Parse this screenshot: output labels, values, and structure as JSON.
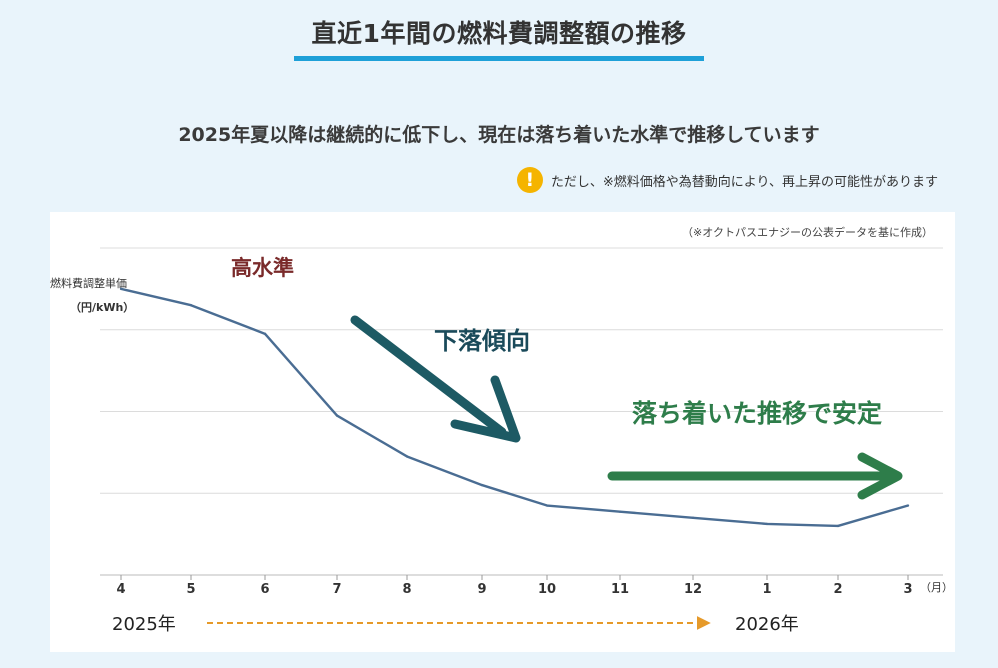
{
  "header": {
    "title": "直近1年間の燃料費調整額の推移"
  },
  "subtitle": "2025年夏以降は継続的に低下し、現在は落ち着いた水準で推移しています",
  "note": {
    "icon": "warning-icon",
    "icon_glyph": "!",
    "text": "ただし、※燃料価格や為替動向により、再上昇の可能性があります"
  },
  "source": "（※オクトパスエナジーの公表データを基に作成）",
  "year_start": "2025年",
  "year_end": "2026年",
  "annotations": {
    "high": "高水準",
    "falling": "下落傾向",
    "stable": "落ち着いた推移で安定"
  },
  "colors": {
    "line": "#4a6d93",
    "title_underline": "#1ea0d8",
    "high": "#7a2a2a",
    "falling": "#1a4a5a",
    "falling_arrow": "#1d5a64",
    "stable": "#2e7d4a",
    "year_arrow": "#e69a2a",
    "grid": "#dcdcdc"
  },
  "chart_data": {
    "type": "line",
    "title": "",
    "ylabel_line1": "燃料費調整単価",
    "ylabel_line2": "（円/kWh）",
    "xlabel_unit": "（月）",
    "categories": [
      "4",
      "5",
      "6",
      "7",
      "8",
      "9",
      "10",
      "11",
      "12",
      "1",
      "2",
      "3"
    ],
    "series": [
      {
        "name": "燃料費調整単価",
        "values": [
          9.0,
          8.6,
          7.9,
          5.9,
          4.9,
          4.2,
          3.7,
          3.55,
          3.4,
          3.25,
          3.2,
          3.7
        ]
      }
    ],
    "ylim": [
      2.0,
      10.0
    ],
    "grid": true,
    "y_tick_labels_shown": false
  }
}
